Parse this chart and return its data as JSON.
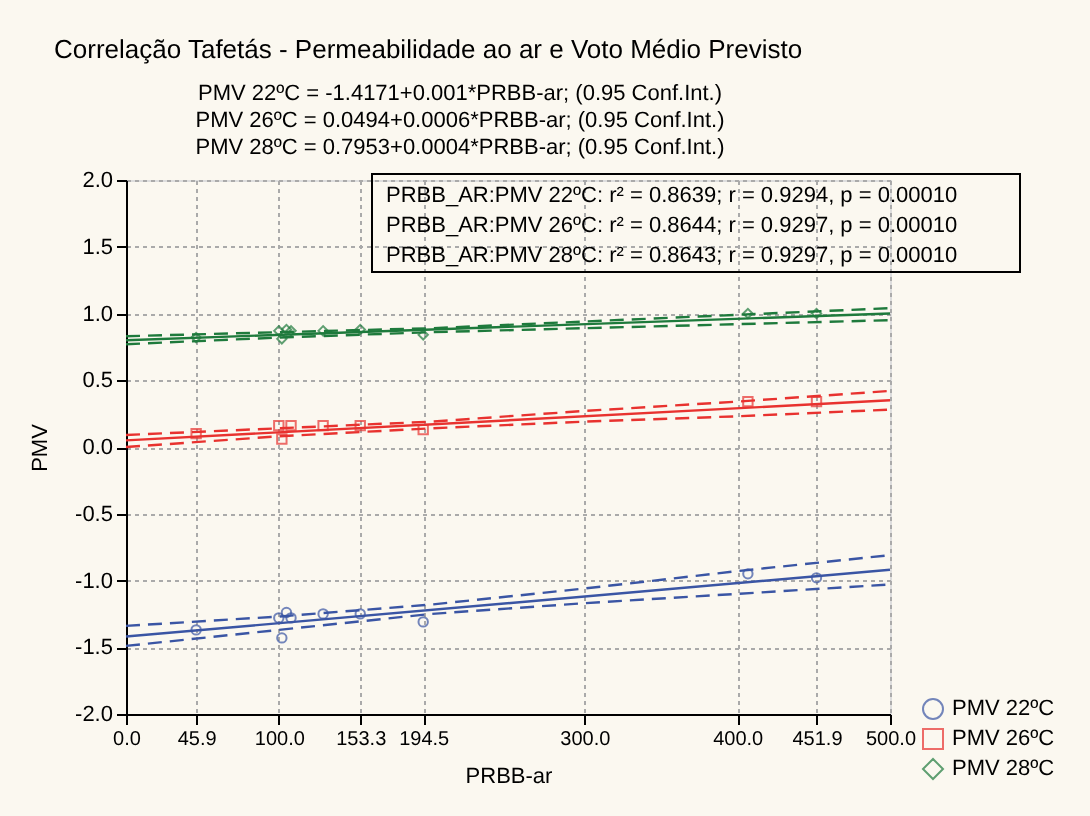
{
  "chart_data": {
    "type": "scatter",
    "title": "Correlação Tafetás - Permeabilidade ao ar e Voto Médio Previsto",
    "subtitle": "PMV 22ºC = -1.4171+0.001*PRBB-ar; (0.95 Conf.Int.)\nPMV 26ºC = 0.0494+0.0006*PRBB-ar; (0.95 Conf.Int.)\nPMV 28ºC = 0.7953+0.0004*PRBB-ar; (0.95 Conf.Int.)",
    "xlabel": "PRBB-ar",
    "ylabel": "PMV",
    "annotations": [
      "PRBB_AR:PMV 22ºC:  r² = 0.8639;  r = 0.9294, p = 0.00010",
      "PRBB_AR:PMV 26ºC:  r² = 0.8644;  r = 0.9297, p = 0.00010",
      "PRBB_AR:PMV 28ºC:  r² = 0.8643;  r = 0.9297, p = 0.00010"
    ],
    "xlim": [
      0,
      500
    ],
    "ylim": [
      -2,
      2
    ],
    "xticks": [
      {
        "value": 0,
        "label": "0.0"
      },
      45.9,
      {
        "value": 100,
        "label": "100.0"
      },
      153.3,
      194.5,
      {
        "value": 300,
        "label": "300.0"
      },
      {
        "value": 400,
        "label": "400.0"
      },
      451.9,
      {
        "value": 500,
        "label": "500.0"
      }
    ],
    "yticks": [
      {
        "value": -2,
        "label": "-2.0"
      },
      -1.5,
      {
        "value": -1,
        "label": "-1.0"
      },
      -0.5,
      {
        "value": 0,
        "label": "0.0"
      },
      0.5,
      {
        "value": 1,
        "label": "1.0"
      },
      1.5,
      {
        "value": 2,
        "label": "2.0"
      }
    ],
    "grid": true,
    "legend": "bottom right",
    "series": [
      {
        "name": "PMV 22ºC",
        "type": "scatter",
        "marker": "circle",
        "color": "#3a55a4",
        "x": [
          45.9,
          100,
          102,
          105,
          108,
          129,
          153.3,
          194.5,
          407,
          451.9
        ],
        "values": [
          -1.37,
          -1.28,
          -1.43,
          -1.24,
          -1.28,
          -1.25,
          -1.25,
          -1.31,
          -0.95,
          -0.98
        ]
      },
      {
        "name": "PMV 26ºC",
        "type": "scatter",
        "marker": "square",
        "color": "#e8322f",
        "x": [
          45.9,
          100,
          102,
          108,
          129,
          153.3,
          194.5,
          407,
          451.9
        ],
        "values": [
          0.1,
          0.16,
          0.06,
          0.16,
          0.16,
          0.16,
          0.13,
          0.34,
          0.34
        ]
      },
      {
        "name": "PMV 28ºC",
        "type": "scatter",
        "marker": "diamond",
        "color": "#1e7a3c",
        "x": [
          45.9,
          100,
          102,
          105,
          108,
          129,
          153.3,
          194.5,
          407,
          451.9
        ],
        "values": [
          0.82,
          0.87,
          0.81,
          0.88,
          0.87,
          0.87,
          0.88,
          0.84,
          1.0,
          1.0
        ]
      },
      {
        "type": "line",
        "line_style": "solid",
        "color": "#3a55a4",
        "x": [
          0,
          500
        ],
        "values": [
          -1.42,
          -0.92
        ]
      },
      {
        "type": "line",
        "line_style": "dashed",
        "color": "#3a55a4",
        "x": [
          0,
          100,
          200,
          300,
          400,
          500
        ],
        "values": [
          -1.34,
          -1.27,
          -1.18,
          -1.06,
          -0.93,
          -0.81
        ]
      },
      {
        "type": "line",
        "line_style": "dashed",
        "color": "#3a55a4",
        "x": [
          0,
          100,
          200,
          300,
          400,
          500
        ],
        "values": [
          -1.49,
          -1.37,
          -1.25,
          -1.17,
          -1.1,
          -1.03
        ]
      },
      {
        "type": "line",
        "line_style": "solid",
        "color": "#e8322f",
        "x": [
          0,
          500
        ],
        "values": [
          0.05,
          0.35
        ]
      },
      {
        "type": "line",
        "line_style": "dashed",
        "color": "#e8322f",
        "x": [
          0,
          100,
          200,
          300,
          400,
          500
        ],
        "values": [
          0.09,
          0.14,
          0.19,
          0.27,
          0.34,
          0.42
        ]
      },
      {
        "type": "line",
        "line_style": "dashed",
        "color": "#e8322f",
        "x": [
          0,
          100,
          200,
          300,
          400,
          500
        ],
        "values": [
          0.0,
          0.08,
          0.14,
          0.19,
          0.23,
          0.28
        ]
      },
      {
        "type": "line",
        "line_style": "solid",
        "color": "#1e7a3c",
        "x": [
          0,
          500
        ],
        "values": [
          0.8,
          1.0
        ]
      },
      {
        "type": "line",
        "line_style": "dashed",
        "color": "#1e7a3c",
        "x": [
          0,
          100,
          200,
          300,
          400,
          500
        ],
        "values": [
          0.83,
          0.86,
          0.89,
          0.94,
          0.99,
          1.04
        ]
      },
      {
        "type": "line",
        "line_style": "dashed",
        "color": "#1e7a3c",
        "x": [
          0,
          100,
          200,
          300,
          400,
          500
        ],
        "values": [
          0.77,
          0.82,
          0.86,
          0.89,
          0.92,
          0.95
        ]
      }
    ]
  }
}
